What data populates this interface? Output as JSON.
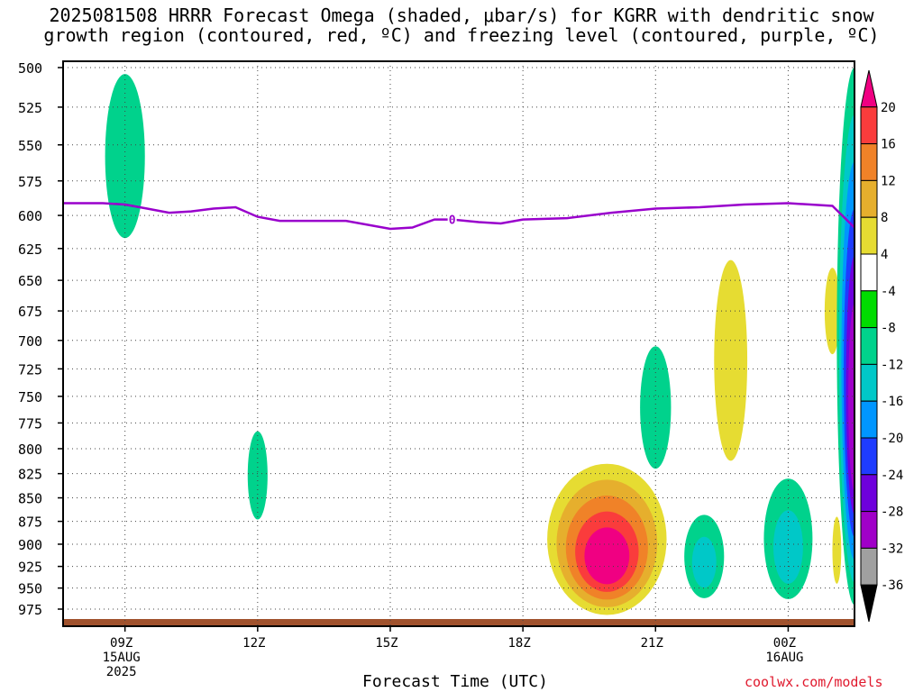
{
  "title": {
    "line1": "2025081508 HRRR Forecast Omega (shaded, μbar/s) for KGRR with dendritic snow",
    "line2": "growth region (contoured, red, ºC) and freezing level (contoured, purple, ºC)"
  },
  "credit": "coolwx.com/models",
  "chart_data": {
    "type": "heatmap",
    "xlabel": "Forecast Time (UTC)",
    "ylabel": "",
    "y_axis": {
      "ticks": [
        500,
        525,
        550,
        575,
        600,
        625,
        650,
        675,
        700,
        725,
        750,
        775,
        800,
        825,
        850,
        875,
        900,
        925,
        950,
        975
      ],
      "range": [
        500,
        997
      ],
      "inverted": true,
      "scale": "log-pressure"
    },
    "x_axis": {
      "range_hours_from_09Z": [
        -1.4,
        16.5
      ],
      "ticks": [
        {
          "hour": 0,
          "labels": [
            "09Z",
            "15AUG",
            "2025"
          ]
        },
        {
          "hour": 3,
          "labels": [
            "12Z"
          ]
        },
        {
          "hour": 6,
          "labels": [
            "15Z"
          ]
        },
        {
          "hour": 9,
          "labels": [
            "18Z"
          ]
        },
        {
          "hour": 12,
          "labels": [
            "21Z"
          ]
        },
        {
          "hour": 15,
          "labels": [
            "00Z",
            "16AUG"
          ]
        }
      ]
    },
    "grid": true,
    "colorbar": {
      "position": "right",
      "levels": [
        "-36",
        "-32",
        "-28",
        "-24",
        "-20",
        "-16",
        "-12",
        "-8",
        "-4",
        "4",
        "8",
        "12",
        "16",
        "20"
      ],
      "colors": [
        "#000000",
        "#a0a0a0",
        "#a000c8",
        "#6e00dc",
        "#1e3cff",
        "#0096ff",
        "#00c8c8",
        "#00d28c",
        "#00dc00",
        "#ffffff",
        "#e6dc32",
        "#e6af2d",
        "#f08228",
        "#fa3c3c",
        "#f00082"
      ]
    },
    "freezing_level": {
      "label": "0",
      "color": "#9900cc",
      "points": [
        [
          -1.4,
          591
        ],
        [
          -0.5,
          591
        ],
        [
          0,
          592
        ],
        [
          0.5,
          595
        ],
        [
          1,
          598
        ],
        [
          1.5,
          597
        ],
        [
          2,
          595
        ],
        [
          2.5,
          594
        ],
        [
          3,
          601
        ],
        [
          3.5,
          604
        ],
        [
          4,
          604
        ],
        [
          5,
          604
        ],
        [
          6,
          610
        ],
        [
          6.5,
          609
        ],
        [
          7,
          603
        ],
        [
          7.4,
          603
        ],
        [
          8,
          605
        ],
        [
          8.5,
          606
        ],
        [
          9,
          603
        ],
        [
          10,
          602
        ],
        [
          11,
          598
        ],
        [
          12,
          595
        ],
        [
          13,
          594
        ],
        [
          14,
          592
        ],
        [
          15,
          591
        ],
        [
          16,
          593
        ],
        [
          16.5,
          609
        ]
      ]
    },
    "omega_features": [
      {
        "hour": 0.0,
        "p_top": 504,
        "p_bottom": 617,
        "width_hours": 0.9,
        "levels": [
          "-8"
        ]
      },
      {
        "hour": 3.0,
        "p_top": 783,
        "p_bottom": 873,
        "width_hours": 0.45,
        "levels": [
          "-8"
        ]
      },
      {
        "hour": 12.0,
        "p_top": 705,
        "p_bottom": 820,
        "width_hours": 0.7,
        "levels": [
          "-8"
        ]
      },
      {
        "hour": 13.7,
        "p_top": 634,
        "p_bottom": 812,
        "width_hours": 0.75,
        "levels": [
          "4"
        ]
      },
      {
        "hour": 16.0,
        "p_top": 640,
        "p_bottom": 712,
        "width_hours": 0.35,
        "levels": [
          "4"
        ]
      },
      {
        "hour": 10.9,
        "p_top": 815,
        "p_bottom": 982,
        "width_hours": 2.7,
        "levels": [
          "4",
          "8",
          "12",
          "16",
          "20"
        ]
      },
      {
        "hour": 13.1,
        "p_top": 868,
        "p_bottom": 962,
        "width_hours": 0.9,
        "levels": [
          "-8",
          "-12"
        ]
      },
      {
        "hour": 15.0,
        "p_top": 830,
        "p_bottom": 963,
        "width_hours": 1.1,
        "levels": [
          "-8",
          "-12"
        ]
      },
      {
        "hour": 16.1,
        "p_top": 870,
        "p_bottom": 945,
        "width_hours": 0.2,
        "levels": [
          "4"
        ]
      },
      {
        "hour": 16.5,
        "p_top": 500,
        "p_bottom": 970,
        "width_hours": 0.8,
        "levels": [
          "-8",
          "-12",
          "-16",
          "-20",
          "-24",
          "-28"
        ]
      }
    ]
  }
}
